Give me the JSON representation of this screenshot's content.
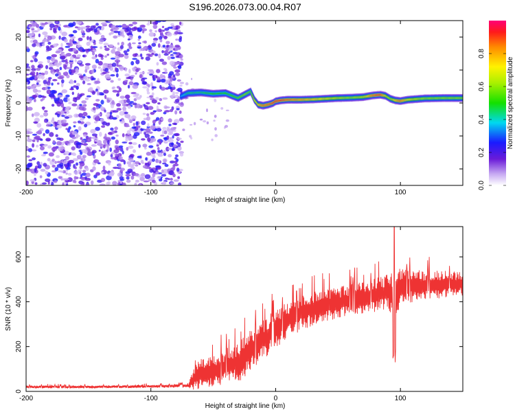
{
  "title": "S196.2026.073.00.04.R07",
  "chart_data": [
    {
      "type": "heatmap",
      "xlabel": "Height of straight line (km)",
      "ylabel": "Frequency (Hz)",
      "xlim": [
        -200,
        150
      ],
      "ylim": [
        -25,
        25
      ],
      "xticks": [
        -200,
        -100,
        0,
        100
      ],
      "xtick_labels": [
        "-200",
        "-100",
        "0",
        "100"
      ],
      "yticks": [
        -20,
        -10,
        0,
        10,
        20
      ],
      "ytick_labels": [
        "-20",
        "-10",
        "0",
        "10",
        "20"
      ],
      "noise_region_km": [
        -200,
        -78
      ],
      "ridge": {
        "x": [
          -76,
          -70,
          -60,
          -50,
          -40,
          -30,
          -25,
          -20,
          -17,
          -14,
          -10,
          -6,
          -2,
          0,
          4,
          10,
          20,
          30,
          40,
          50,
          60,
          70,
          78,
          84,
          88,
          92,
          96,
          100,
          106,
          120,
          135,
          150
        ],
        "freq": [
          2.0,
          3.0,
          3.2,
          2.8,
          3.0,
          1.5,
          2.5,
          3.5,
          1.0,
          -0.5,
          -0.8,
          -0.5,
          0,
          0.5,
          0.8,
          1.0,
          1.0,
          1.1,
          1.3,
          1.5,
          1.6,
          1.8,
          2.3,
          2.5,
          2.2,
          1.3,
          0.8,
          0.6,
          1.0,
          1.4,
          1.5,
          1.5
        ],
        "amplitude": [
          0.35,
          0.45,
          0.45,
          0.5,
          0.5,
          0.55,
          0.6,
          0.55,
          0.7,
          0.75,
          0.85,
          0.85,
          0.9,
          0.9,
          0.9,
          0.85,
          0.8,
          0.75,
          0.7,
          0.65,
          0.6,
          0.65,
          0.85,
          0.9,
          0.7,
          0.6,
          0.75,
          0.85,
          0.7,
          0.6,
          0.6,
          0.6
        ]
      },
      "colorbar": {
        "label": "Normalized spectral amplitude",
        "range": [
          0,
          1
        ],
        "ticks": [
          0.0,
          0.2,
          0.4,
          0.6,
          0.8
        ],
        "tick_labels": [
          "0.0",
          "0.2",
          "0.4",
          "0.6",
          "0.8"
        ]
      }
    },
    {
      "type": "line",
      "xlabel": "Height of straight line (km)",
      "ylabel": "SNR (10 * v/v)",
      "xlim": [
        -200,
        150
      ],
      "ylim": [
        0,
        735
      ],
      "xticks": [
        -200,
        -100,
        0,
        100
      ],
      "xtick_labels": [
        "-200",
        "-100",
        "0",
        "100"
      ],
      "yticks": [
        0,
        200,
        400,
        600
      ],
      "ytick_labels": [
        "0",
        "200",
        "400",
        "600"
      ],
      "series": [
        {
          "name": "SNR",
          "color": "#ee3333",
          "x": [
            -200,
            -150,
            -100,
            -70,
            -65,
            -60,
            -50,
            -40,
            -30,
            -20,
            -10,
            0,
            10,
            20,
            30,
            40,
            50,
            60,
            70,
            80,
            90,
            94,
            95,
            96,
            100,
            110,
            120,
            130,
            140,
            150
          ],
          "center": [
            20,
            20,
            22,
            25,
            60,
            80,
            90,
            110,
            130,
            180,
            230,
            280,
            320,
            350,
            370,
            385,
            395,
            405,
            420,
            430,
            445,
            430,
            300,
            420,
            460,
            470,
            475,
            475,
            478,
            480
          ],
          "spread": [
            8,
            8,
            8,
            10,
            70,
            80,
            90,
            100,
            110,
            120,
            110,
            110,
            100,
            100,
            95,
            90,
            90,
            90,
            90,
            95,
            100,
            150,
            200,
            150,
            110,
            90,
            80,
            80,
            75,
            75
          ],
          "peak": {
            "x": 95,
            "y": 735,
            "dip": 120
          }
        }
      ]
    }
  ]
}
